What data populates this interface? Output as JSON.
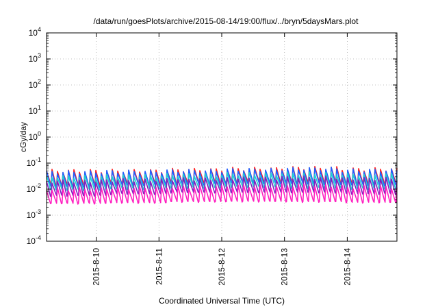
{
  "chart_data": {
    "type": "line",
    "title": "/data/run/goesPlots/archive/2015-08-14/19:00/flux/../bryn/5daysMars.plot",
    "xlabel": "Coordinated Universal Time (UTC)",
    "ylabel": "cGy/day",
    "yscale": "log",
    "ylim": [
      0.0001,
      10000
    ],
    "xlim": [
      "2015-08-09 05:00",
      "2015-08-14 19:00"
    ],
    "grid": true,
    "y_ticks": [
      {
        "base": "10",
        "exp": "4"
      },
      {
        "base": "10",
        "exp": "3"
      },
      {
        "base": "10",
        "exp": "2"
      },
      {
        "base": "10",
        "exp": "1"
      },
      {
        "base": "10",
        "exp": "0"
      },
      {
        "base": "10",
        "exp": "-1"
      },
      {
        "base": "10",
        "exp": "-2"
      },
      {
        "base": "10",
        "exp": "-3"
      },
      {
        "base": "10",
        "exp": "-4"
      }
    ],
    "x_ticks": [
      "2015-8-10",
      "2015-8-11",
      "2015-8-12",
      "2015-8-13",
      "2015-8-14"
    ],
    "series": [
      {
        "color": "#ff2020",
        "values": [
          0.05,
          0.015,
          0.05,
          0.017,
          0.055,
          0.018,
          0.06,
          0.02,
          0.065,
          0.019,
          0.058,
          0.017
        ]
      },
      {
        "color": "#2060ff",
        "values": [
          0.045,
          0.013,
          0.047,
          0.015,
          0.05,
          0.016,
          0.055,
          0.018,
          0.06,
          0.017,
          0.052,
          0.015
        ]
      },
      {
        "color": "#20d0d0",
        "values": [
          0.03,
          0.01,
          0.032,
          0.011,
          0.035,
          0.012,
          0.038,
          0.013,
          0.04,
          0.012,
          0.036,
          0.011
        ]
      },
      {
        "color": "#8020c0",
        "values": [
          0.02,
          0.006,
          0.022,
          0.007,
          0.024,
          0.008,
          0.026,
          0.008,
          0.028,
          0.008,
          0.025,
          0.007
        ]
      },
      {
        "color": "#ff20c0",
        "values": [
          0.01,
          0.003,
          0.011,
          0.0032,
          0.012,
          0.0035,
          0.013,
          0.0036,
          0.014,
          0.0035,
          0.012,
          0.0033
        ]
      }
    ]
  }
}
